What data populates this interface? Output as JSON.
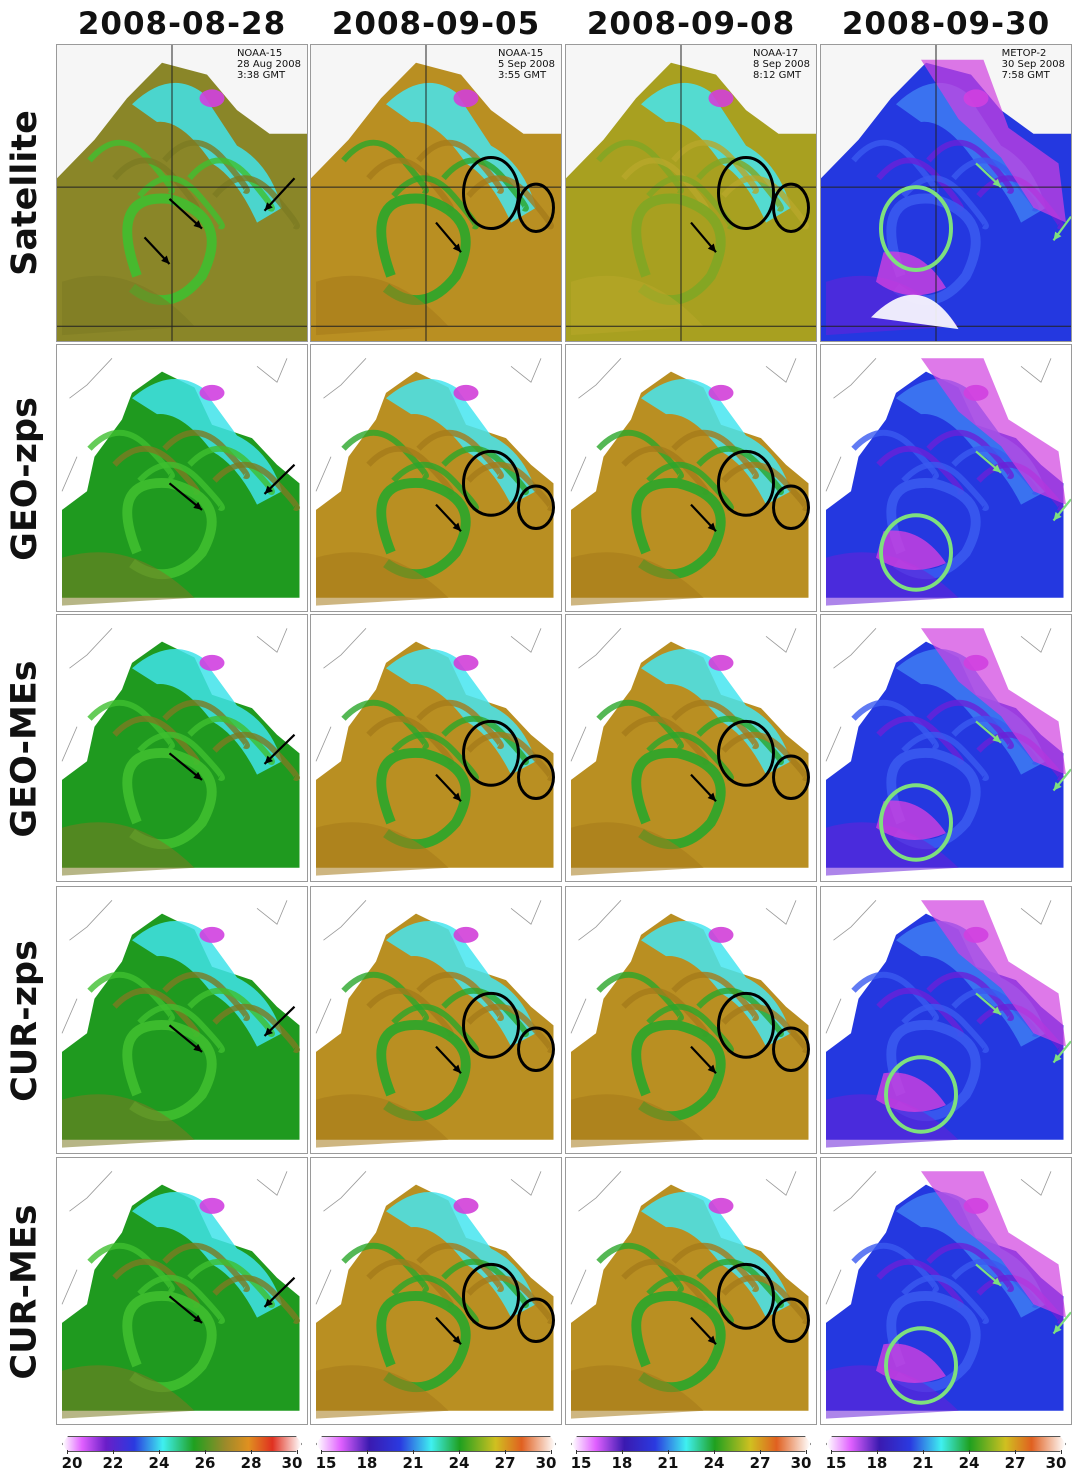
{
  "columns": [
    {
      "date": "2008-08-28",
      "colorbar_ticks": [
        "20",
        "22",
        "24",
        "26",
        "28",
        "30"
      ],
      "palette": "a"
    },
    {
      "date": "2008-09-05",
      "colorbar_ticks": [
        "15",
        "18",
        "21",
        "24",
        "27",
        "30"
      ],
      "palette": "b"
    },
    {
      "date": "2008-09-08",
      "colorbar_ticks": [
        "15",
        "18",
        "21",
        "24",
        "27",
        "30"
      ],
      "palette": "b"
    },
    {
      "date": "2008-09-30",
      "colorbar_ticks": [
        "15",
        "18",
        "21",
        "24",
        "27",
        "30"
      ],
      "palette": "c"
    }
  ],
  "rows": [
    "Satellite",
    "GEO-zps",
    "GEO-MEs",
    "CUR-zps",
    "CUR-MEs"
  ],
  "satellite_labels": [
    {
      "sensor": "NOAA-15",
      "date": "28 Aug 2008",
      "time": "3:38 GMT"
    },
    {
      "sensor": "NOAA-15",
      "date": "5 Sep 2008",
      "time": "3:55 GMT"
    },
    {
      "sensor": "NOAA-17",
      "date": "8 Sep 2008",
      "time": "8:12 GMT"
    },
    {
      "sensor": "METOP-2",
      "date": "30 Sep 2008",
      "time": "7:58 GMT"
    }
  ],
  "colors": {
    "marker_dark": "#000000",
    "marker_green": "#7ee07e",
    "sea_warm": "#b08a1e",
    "sea_green": "#2aa52a",
    "sea_cyan": "#3fe0e8",
    "sea_blue": "#2a3ae0",
    "sea_magenta": "#d13fd8"
  }
}
